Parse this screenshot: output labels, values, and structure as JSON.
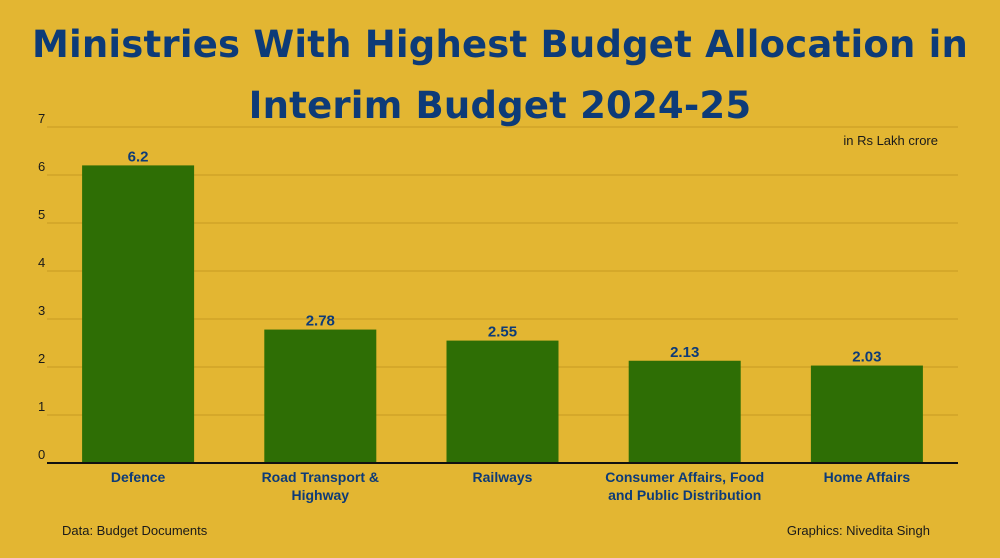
{
  "chart_data": {
    "type": "bar",
    "title": "Ministries With Highest Budget Allocation in Interim Budget 2024-25",
    "unit_note": "in Rs Lakh crore",
    "categories": [
      [
        "Defence"
      ],
      [
        "Road Transport &",
        "Highway"
      ],
      [
        "Railways"
      ],
      [
        "Consumer Affairs, Food",
        "and Public Distribution"
      ],
      [
        "Home Affairs"
      ]
    ],
    "values": [
      6.2,
      2.78,
      2.55,
      2.13,
      2.03
    ],
    "data_labels": [
      "6.2",
      "2.78",
      "2.55",
      "2.13",
      "2.03"
    ],
    "ylim": [
      0,
      7
    ],
    "yticks": [
      0,
      1,
      2,
      3,
      4,
      5,
      6,
      7
    ],
    "grid": true,
    "bar_color": "#2e6e05",
    "text_color": "#0d3b78",
    "background": "#e3b632"
  },
  "footer": {
    "source": "Data: Budget Documents",
    "credit": "Graphics: Nivedita Singh"
  }
}
